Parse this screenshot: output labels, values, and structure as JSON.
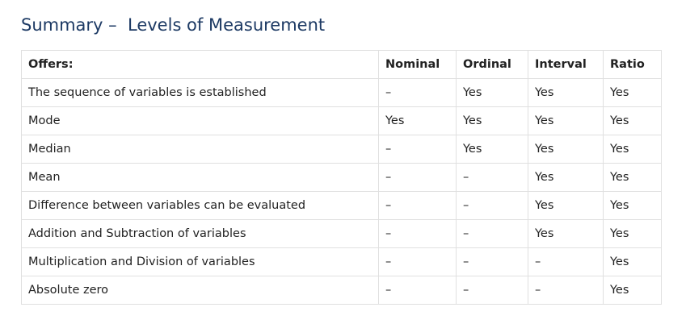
{
  "page": {
    "title": "Summary –  Levels of Measurement"
  },
  "table": {
    "headers": [
      "Offers:",
      "Nominal",
      "Ordinal",
      "Interval",
      "Ratio"
    ],
    "rows": [
      [
        "The sequence of variables is established",
        "–",
        "Yes",
        "Yes",
        "Yes"
      ],
      [
        "Mode",
        "Yes",
        "Yes",
        "Yes",
        "Yes"
      ],
      [
        "Median",
        "–",
        "Yes",
        "Yes",
        "Yes"
      ],
      [
        "Mean",
        "–",
        "–",
        "Yes",
        "Yes"
      ],
      [
        "Difference between variables can be evaluated",
        "–",
        "–",
        "Yes",
        "Yes"
      ],
      [
        "Addition and Subtraction of variables",
        "–",
        "–",
        "Yes",
        "Yes"
      ],
      [
        "Multiplication and Division of variables",
        "–",
        "–",
        "–",
        "Yes"
      ],
      [
        "Absolute zero",
        "–",
        "–",
        "–",
        "Yes"
      ]
    ]
  },
  "colors": {
    "title": "#1d3a64",
    "border": "#e0e0e0",
    "text": "#222222"
  }
}
